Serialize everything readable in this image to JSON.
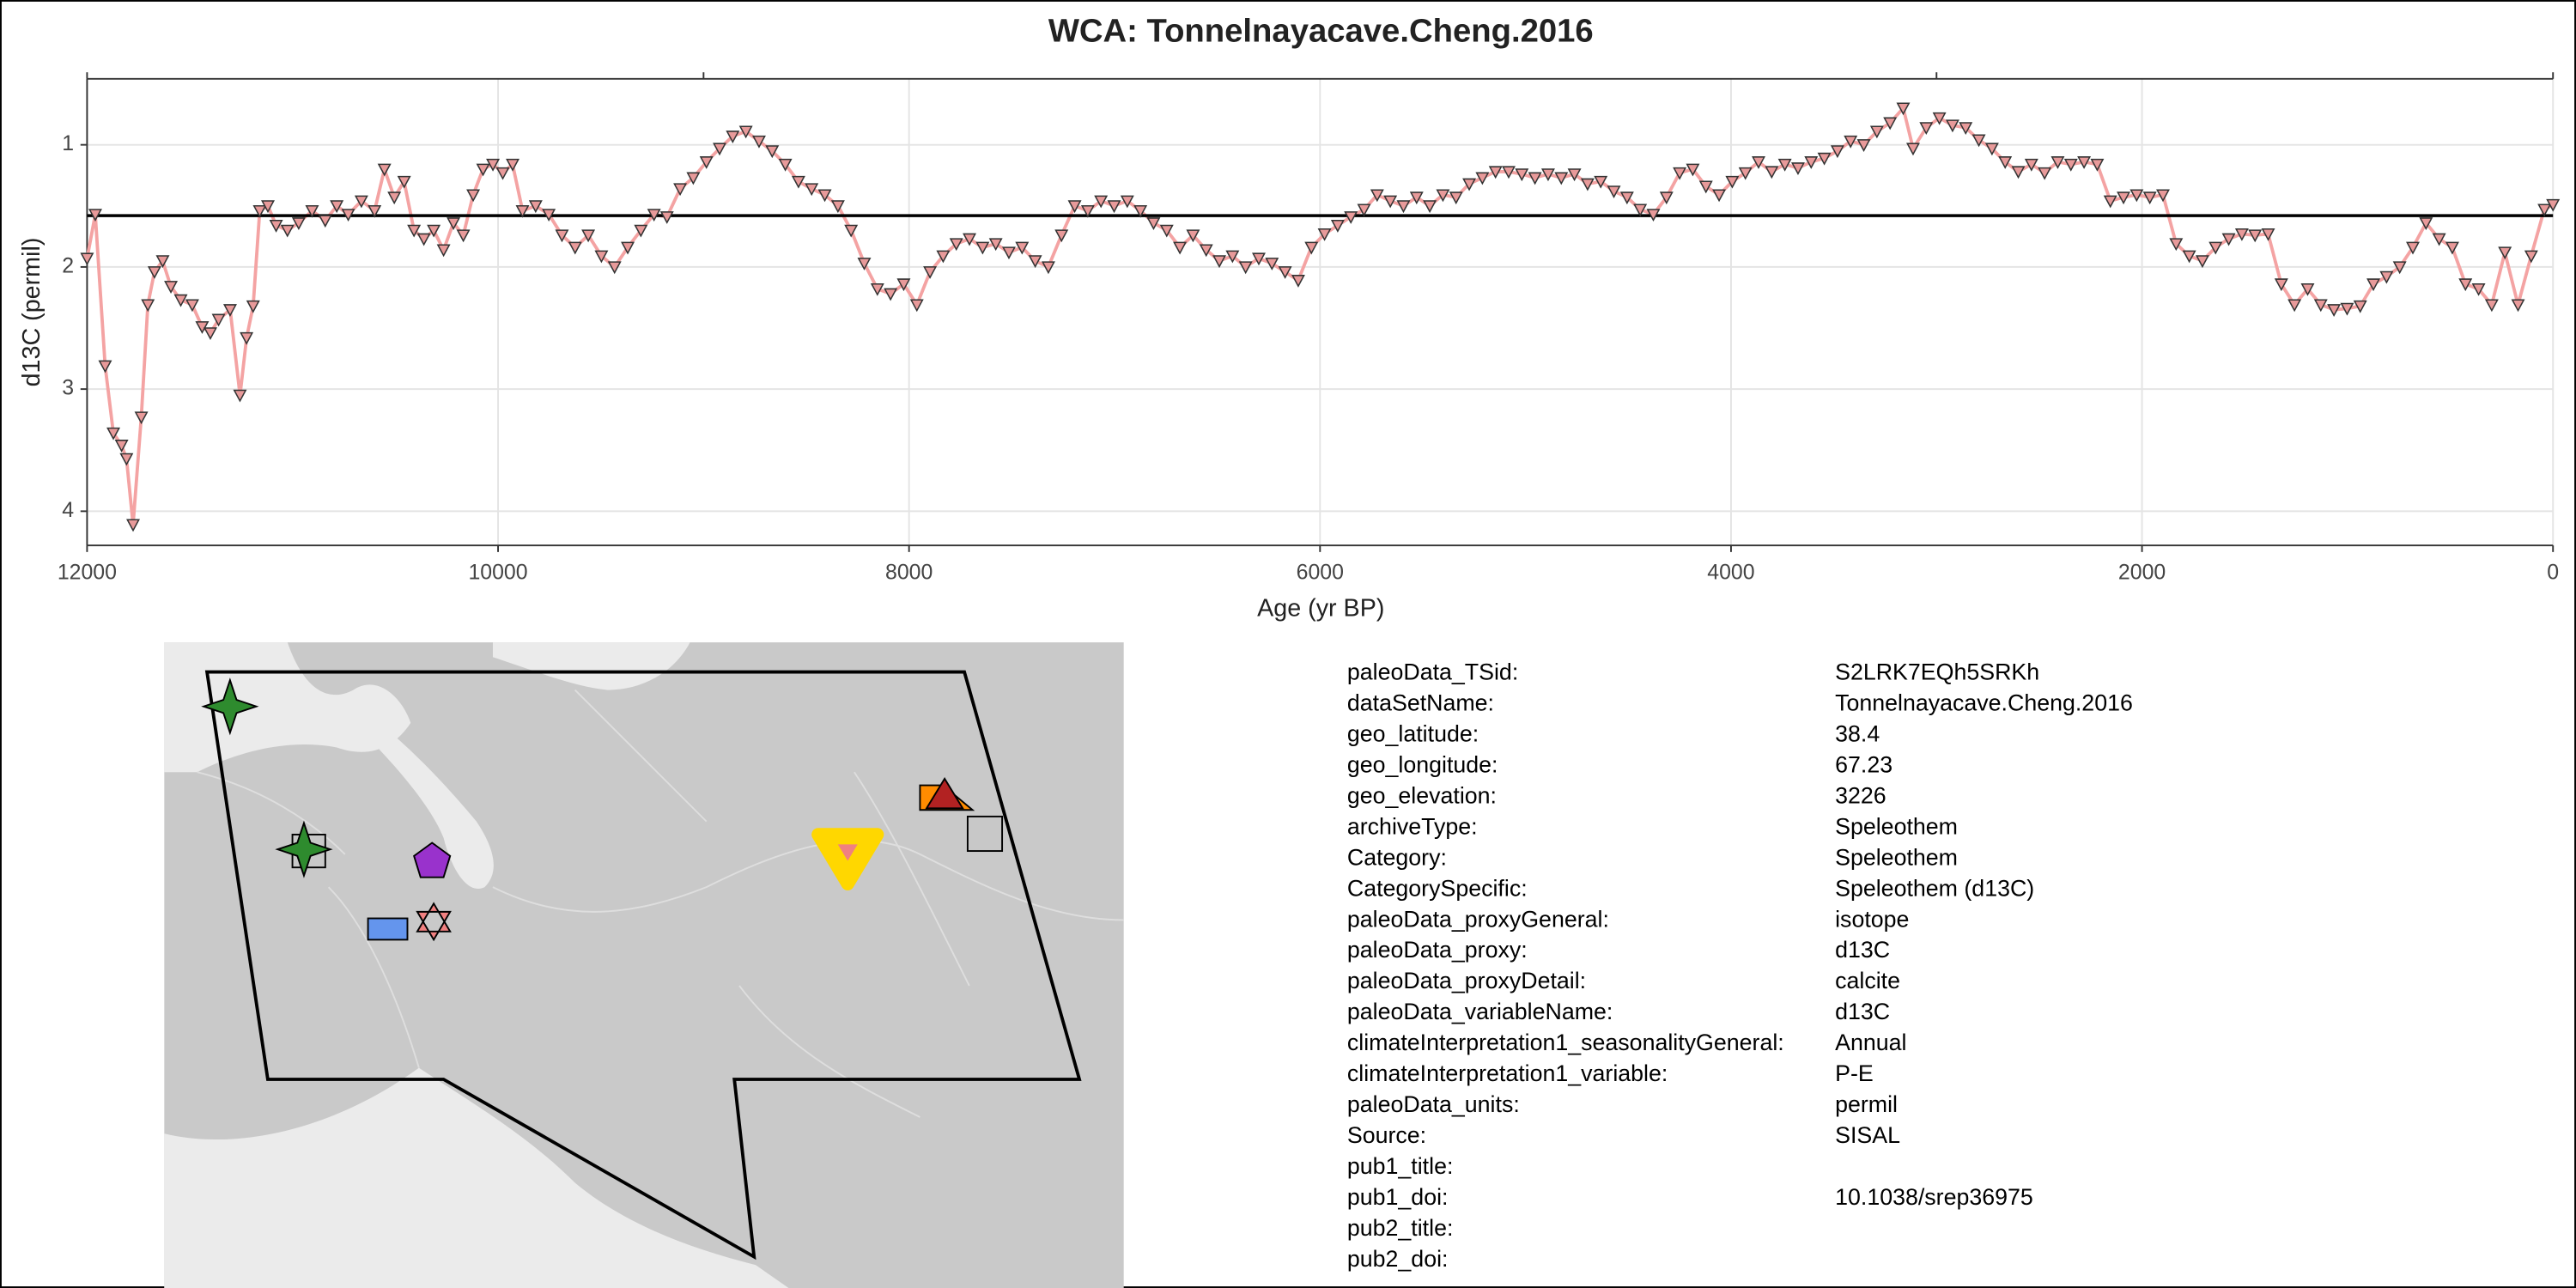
{
  "chart_data": {
    "type": "line",
    "title": "WCA: Tonnelnayacave.Cheng.2016",
    "x_label": "Age (yr BP)",
    "y_label": "d13C (permil)",
    "xlim": [
      12000,
      0
    ],
    "xticks": [
      12000,
      10000,
      8000,
      6000,
      4000,
      2000,
      0
    ],
    "top_ticks": [
      12000,
      9000,
      3000,
      0
    ],
    "ylim": [
      4.28,
      0.46
    ],
    "yticks": [
      1,
      2,
      3,
      4
    ],
    "hline": 1.58,
    "grid": true,
    "line_color": "#f4a3a3",
    "marker_color": "#e89a9a",
    "x": [
      12000,
      11960,
      11912,
      11872,
      11832,
      11808,
      11776,
      11736,
      11704,
      11672,
      11632,
      11592,
      11544,
      11488,
      11440,
      11400,
      11360,
      11304,
      11256,
      11224,
      11192,
      11160,
      11120,
      11080,
      11025,
      10970,
      10905,
      10841,
      10785,
      10729,
      10665,
      10601,
      10553,
      10505,
      10457,
      10409,
      10361,
      10313,
      10265,
      10217,
      10169,
      10121,
      10073,
      10025,
      9977,
      9929,
      9881,
      9817,
      9753,
      9689,
      9625,
      9561,
      9497,
      9433,
      9369,
      9305,
      9241,
      9178,
      9114,
      9050,
      8986,
      8922,
      8858,
      8794,
      8730,
      8666,
      8602,
      8538,
      8474,
      8410,
      8346,
      8282,
      8218,
      8154,
      8090,
      8026,
      7962,
      7898,
      7834,
      7770,
      7706,
      7642,
      7578,
      7514,
      7450,
      7386,
      7322,
      7258,
      7194,
      7130,
      7066,
      7002,
      6938,
      6874,
      6810,
      6746,
      6682,
      6618,
      6554,
      6490,
      6426,
      6362,
      6298,
      6234,
      6170,
      6106,
      6042,
      5978,
      5914,
      5850,
      5786,
      5722,
      5658,
      5594,
      5530,
      5466,
      5402,
      5338,
      5274,
      5210,
      5146,
      5082,
      5018,
      4954,
      4890,
      4826,
      4762,
      4698,
      4634,
      4570,
      4506,
      4442,
      4378,
      4314,
      4250,
      4186,
      4122,
      4058,
      3994,
      3930,
      3866,
      3802,
      3738,
      3674,
      3610,
      3546,
      3482,
      3418,
      3354,
      3290,
      3226,
      3162,
      3114,
      3050,
      2986,
      2922,
      2858,
      2794,
      2730,
      2666,
      2602,
      2538,
      2474,
      2410,
      2346,
      2282,
      2218,
      2154,
      2090,
      2026,
      1962,
      1898,
      1834,
      1770,
      1706,
      1642,
      1578,
      1514,
      1450,
      1386,
      1322,
      1258,
      1194,
      1130,
      1066,
      1002,
      938,
      874,
      810,
      746,
      682,
      618,
      554,
      490,
      426,
      362,
      298,
      234,
      170,
      106,
      42,
      0
    ],
    "series": [
      {
        "name": "d13C",
        "values": [
          1.93,
          1.57,
          2.81,
          3.36,
          3.46,
          3.57,
          4.11,
          3.23,
          2.31,
          2.04,
          1.95,
          2.16,
          2.27,
          2.31,
          2.49,
          2.54,
          2.43,
          2.35,
          3.05,
          2.58,
          2.32,
          1.54,
          1.5,
          1.66,
          1.7,
          1.64,
          1.54,
          1.62,
          1.5,
          1.57,
          1.46,
          1.54,
          1.2,
          1.43,
          1.3,
          1.7,
          1.77,
          1.7,
          1.86,
          1.64,
          1.74,
          1.41,
          1.2,
          1.16,
          1.23,
          1.16,
          1.54,
          1.5,
          1.57,
          1.74,
          1.84,
          1.74,
          1.91,
          2.0,
          1.84,
          1.7,
          1.57,
          1.59,
          1.36,
          1.27,
          1.14,
          1.03,
          0.93,
          0.89,
          0.97,
          1.05,
          1.16,
          1.3,
          1.36,
          1.41,
          1.5,
          1.7,
          1.97,
          2.18,
          2.22,
          2.14,
          2.31,
          2.04,
          1.91,
          1.81,
          1.77,
          1.84,
          1.81,
          1.88,
          1.84,
          1.95,
          2.0,
          1.74,
          1.5,
          1.54,
          1.46,
          1.5,
          1.46,
          1.54,
          1.64,
          1.7,
          1.84,
          1.74,
          1.86,
          1.95,
          1.91,
          2.0,
          1.93,
          1.97,
          2.04,
          2.11,
          1.84,
          1.73,
          1.66,
          1.59,
          1.53,
          1.41,
          1.46,
          1.5,
          1.43,
          1.5,
          1.41,
          1.43,
          1.32,
          1.27,
          1.22,
          1.22,
          1.24,
          1.27,
          1.24,
          1.27,
          1.24,
          1.32,
          1.3,
          1.38,
          1.43,
          1.53,
          1.57,
          1.43,
          1.23,
          1.2,
          1.34,
          1.41,
          1.3,
          1.23,
          1.14,
          1.22,
          1.16,
          1.19,
          1.14,
          1.11,
          1.05,
          0.97,
          1.0,
          0.89,
          0.82,
          0.7,
          1.03,
          0.86,
          0.78,
          0.84,
          0.86,
          0.96,
          1.03,
          1.14,
          1.22,
          1.16,
          1.23,
          1.14,
          1.16,
          1.14,
          1.16,
          1.46,
          1.43,
          1.41,
          1.43,
          1.41,
          1.81,
          1.91,
          1.95,
          1.84,
          1.77,
          1.73,
          1.74,
          1.73,
          2.14,
          2.31,
          2.18,
          2.31,
          2.35,
          2.34,
          2.32,
          2.14,
          2.08,
          2.0,
          1.84,
          1.64,
          1.77,
          1.84,
          2.14,
          2.18,
          2.31,
          1.88,
          2.31,
          1.91,
          1.53,
          1.49
        ]
      }
    ]
  },
  "metadata": [
    {
      "key": "paleoData_TSid:",
      "value": "S2LRK7EQh5SRKh"
    },
    {
      "key": "dataSetName:",
      "value": "Tonnelnayacave.Cheng.2016"
    },
    {
      "key": "geo_latitude:",
      "value": "38.4"
    },
    {
      "key": "geo_longitude:",
      "value": "67.23"
    },
    {
      "key": "geo_elevation:",
      "value": "3226"
    },
    {
      "key": "archiveType:",
      "value": "Speleothem"
    },
    {
      "key": "Category:",
      "value": "Speleothem"
    },
    {
      "key": "CategorySpecific:",
      "value": "Speleothem (d13C)"
    },
    {
      "key": "paleoData_proxyGeneral:",
      "value": "isotope"
    },
    {
      "key": "paleoData_proxy:",
      "value": "d13C"
    },
    {
      "key": "paleoData_proxyDetail:",
      "value": "calcite"
    },
    {
      "key": "paleoData_variableName:",
      "value": "d13C"
    },
    {
      "key": "climateInterpretation1_seasonalityGeneral:",
      "value": "Annual"
    },
    {
      "key": "climateInterpretation1_variable:",
      "value": "P-E"
    },
    {
      "key": "paleoData_units:",
      "value": "permil"
    },
    {
      "key": "Source:",
      "value": "SISAL"
    },
    {
      "key": "pub1_title:"
    },
    {
      "key": "pub1_doi:",
      "value": "10.1038/srep36975"
    },
    {
      "key": "pub2_title:"
    },
    {
      "key": "pub2_doi:"
    }
  ]
}
